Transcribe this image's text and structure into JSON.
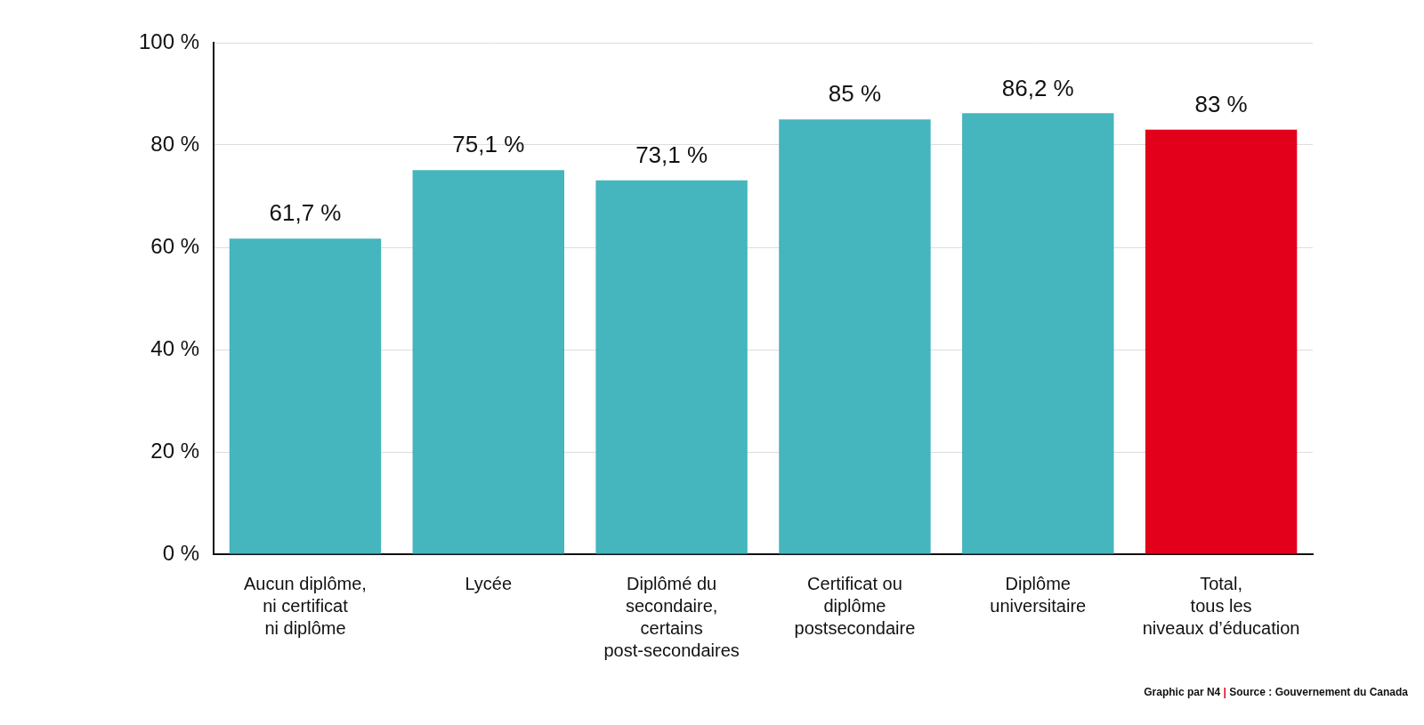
{
  "chart_data": {
    "type": "bar",
    "categories": [
      "Aucun diplôme,\nni certificat\nni diplôme",
      "Lycée",
      "Diplômé du\nsecondaire,\ncertains\npost-secondaires",
      "Certificat ou\ndiplôme\npostsecondaire",
      "Diplôme\nuniversitaire",
      "Total,\ntous les\nniveaux d’éducation"
    ],
    "values": [
      61.7,
      75.1,
      73.1,
      85,
      86.2,
      83
    ],
    "value_labels": [
      "61,7 %",
      "75,1 %",
      "73,1 %",
      "85 %",
      "86,2 %",
      "83 %"
    ],
    "data_labels": true,
    "colors": [
      "#45b5be",
      "#45b5be",
      "#45b5be",
      "#45b5be",
      "#45b5be",
      "#e2001a"
    ],
    "ylim": [
      0,
      100
    ],
    "yticks": [
      {
        "value": 0,
        "label": "0 %"
      },
      {
        "value": 20,
        "label": "20 %"
      },
      {
        "value": 40,
        "label": "40 %"
      },
      {
        "value": 60,
        "label": "60 %"
      },
      {
        "value": 80,
        "label": "80 %"
      },
      {
        "value": 100,
        "label": "100 %"
      }
    ],
    "grid": true,
    "annotations": [
      "Graphic par N4",
      "|",
      "Source : Gouvernement du Canada"
    ]
  }
}
